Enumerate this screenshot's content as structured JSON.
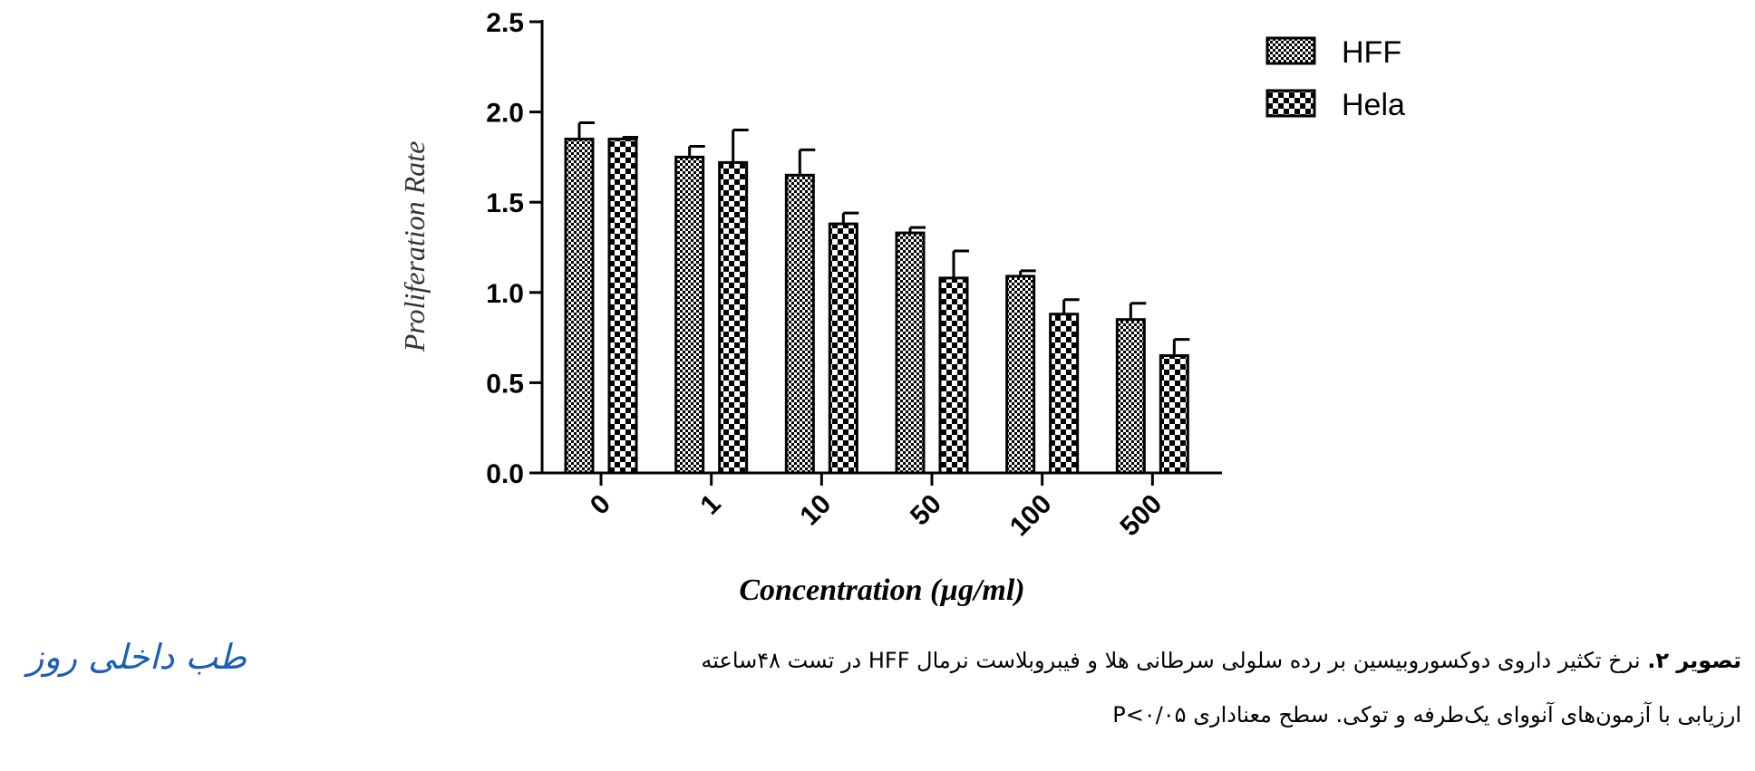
{
  "chart_data": {
    "type": "bar",
    "xlabel": "Concentration (µg/ml)",
    "ylabel": "Proliferation Rate",
    "categories": [
      "0",
      "1",
      "10",
      "50",
      "100",
      "500"
    ],
    "ylim": [
      0,
      2.5
    ],
    "yticks": [
      "0.0",
      "0.5",
      "1.0",
      "1.5",
      "2.0",
      "2.5"
    ],
    "series": [
      {
        "name": "HFF",
        "values": [
          1.85,
          1.75,
          1.65,
          1.33,
          1.09,
          0.85
        ],
        "errors": [
          0.09,
          0.06,
          0.14,
          0.03,
          0.03,
          0.09
        ],
        "pattern": "checker-fine"
      },
      {
        "name": "Hela",
        "values": [
          1.85,
          1.72,
          1.38,
          1.08,
          0.88,
          0.65
        ],
        "errors": [
          0.01,
          0.18,
          0.06,
          0.15,
          0.08,
          0.09
        ],
        "pattern": "checker-coarse"
      }
    ],
    "legend_position": "top-right",
    "error_bars": true
  },
  "caption": {
    "label": "تصویر ۲.",
    "line1": "نرخ تکثیر داروی دوکسوروبیسین بر رده سلولی سرطانی هلا و فیبروبلاست نرمال HFF در تست ۴۸ساعته",
    "line2": "ارزیابی با آزمون‌های آنووای یک‌طرفه و توکی. سطح معناداری P<۰/۰۵"
  },
  "watermark": "طب داخلی روز",
  "colors": {
    "bar_ink": "#000000",
    "background": "#ffffff",
    "watermark": "#1a5fb4"
  }
}
